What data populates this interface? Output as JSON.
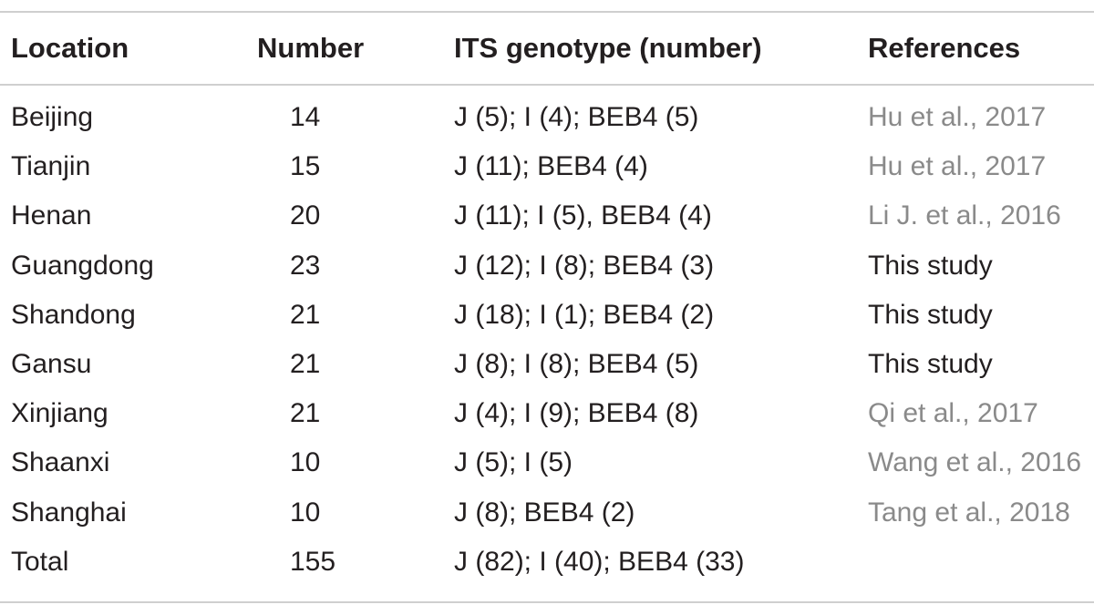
{
  "table": {
    "headers": {
      "location": "Location",
      "number": "Number",
      "its": "ITS genotype (number)",
      "references": "References"
    },
    "rows": [
      {
        "location": "Beijing",
        "number": "14",
        "its": "J (5); I (4); BEB4 (5)",
        "reference": "Hu et al., 2017",
        "ref_style": "link"
      },
      {
        "location": "Tianjin",
        "number": "15",
        "its": "J (11); BEB4 (4)",
        "reference": "Hu et al., 2017",
        "ref_style": "link"
      },
      {
        "location": "Henan",
        "number": "20",
        "its": "J (11); I (5), BEB4 (4)",
        "reference": "Li J. et al., 2016",
        "ref_style": "link"
      },
      {
        "location": "Guangdong",
        "number": "23",
        "its": "J (12); I (8); BEB4 (3)",
        "reference": "This study",
        "ref_style": "plain"
      },
      {
        "location": "Shandong",
        "number": "21",
        "its": "J (18); I (1); BEB4 (2)",
        "reference": "This study",
        "ref_style": "plain"
      },
      {
        "location": "Gansu",
        "number": "21",
        "its": "J (8); I (8); BEB4 (5)",
        "reference": "This study",
        "ref_style": "plain"
      },
      {
        "location": "Xinjiang",
        "number": "21",
        "its": "J (4); I (9); BEB4 (8)",
        "reference": "Qi et al., 2017",
        "ref_style": "link"
      },
      {
        "location": "Shaanxi",
        "number": "10",
        "its": "J (5); I (5)",
        "reference": "Wang et al., 2016",
        "ref_style": "link"
      },
      {
        "location": "Shanghai",
        "number": "10",
        "its": "J (8); BEB4 (2)",
        "reference": "Tang et al., 2018",
        "ref_style": "link"
      },
      {
        "location": "Total",
        "number": "155",
        "its": "J (82); I (40); BEB4 (33)",
        "reference": "",
        "ref_style": "plain"
      }
    ]
  },
  "colors": {
    "text": "#231f20",
    "reference_link": "#8a8a8a",
    "rule": "#cfcfcf"
  }
}
